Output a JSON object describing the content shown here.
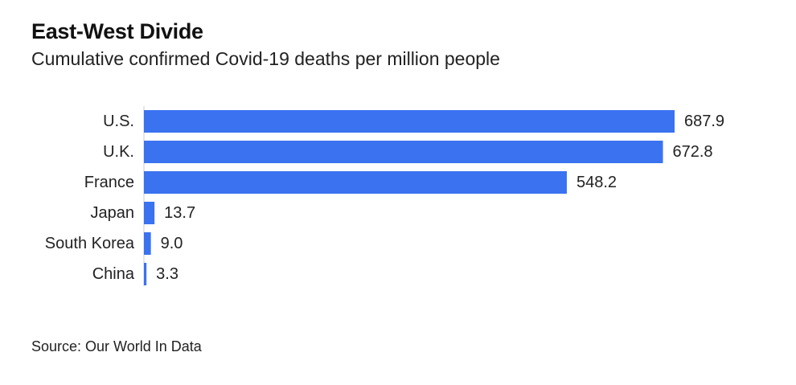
{
  "title": "East-West Divide",
  "subtitle": "Cumulative confirmed Covid-19 deaths per million people",
  "source": "Source: Our World In Data",
  "colors": {
    "bar": "#3a72f0",
    "text": "#222222"
  },
  "chart_data": {
    "type": "bar",
    "orientation": "horizontal",
    "title": "East-West Divide",
    "subtitle": "Cumulative confirmed Covid-19 deaths per million people",
    "categories": [
      "U.S.",
      "U.K.",
      "France",
      "Japan",
      "South Korea",
      "China"
    ],
    "values": [
      687.9,
      672.8,
      548.2,
      13.7,
      9.0,
      3.3
    ],
    "value_labels": [
      "687.9",
      "672.8",
      "548.2",
      "13.7",
      "9.0",
      "3.3"
    ],
    "xlim": [
      0,
      687.9
    ],
    "grid": false,
    "legend": "none"
  }
}
